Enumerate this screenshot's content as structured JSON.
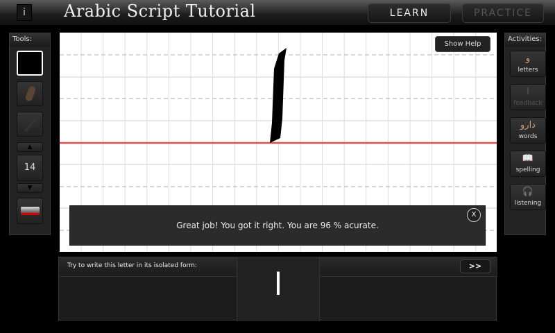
{
  "header": {
    "info_label": "i",
    "title": "Arabic Script Tutorial",
    "learn_label": "LEARN",
    "practice_label": "PRACTICE"
  },
  "tools": {
    "title": "Tools:",
    "size_value": "14",
    "color": "#000000"
  },
  "activities": {
    "title": "Activities:",
    "items": [
      {
        "label": "letters",
        "glyph": "و",
        "enabled": true
      },
      {
        "label": "feedback",
        "glyph": "",
        "enabled": false
      },
      {
        "label": "words",
        "glyph": "دارو",
        "enabled": true
      },
      {
        "label": "spelling",
        "glyph": "",
        "enabled": true
      },
      {
        "label": "listening",
        "glyph": "",
        "enabled": true
      }
    ]
  },
  "canvas": {
    "show_help_label": "Show Help",
    "baseline_color": "#e05050",
    "feedback_message": "Great job! You got it right. You are 96 % acurate.",
    "close_label": "X"
  },
  "prompt": {
    "instruction": "Try to write this letter in its isolated form:",
    "letter": "ا",
    "next_label": ">>"
  }
}
